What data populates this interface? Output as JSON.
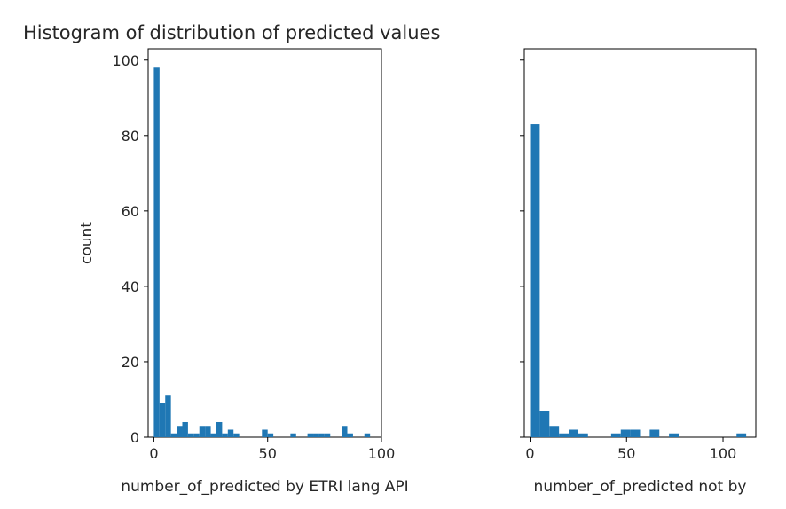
{
  "chart_data": [
    {
      "type": "bar",
      "subtype": "histogram",
      "title": "Histogram of distribution of predicted values",
      "xlabel": "number_of_predicted by ETRI lang API",
      "ylabel": "count",
      "xlim": [
        -2.5,
        100
      ],
      "ylim": [
        0,
        103
      ],
      "xticks": [
        0,
        50,
        100
      ],
      "yticks": [
        0,
        20,
        40,
        60,
        80,
        100
      ],
      "bar_color": "#1f77b4",
      "bins": [
        {
          "x0": 0,
          "x1": 2.5,
          "count": 98
        },
        {
          "x0": 2.5,
          "x1": 5,
          "count": 9
        },
        {
          "x0": 5,
          "x1": 7.5,
          "count": 11
        },
        {
          "x0": 7.5,
          "x1": 10,
          "count": 1
        },
        {
          "x0": 10,
          "x1": 12.5,
          "count": 3
        },
        {
          "x0": 12.5,
          "x1": 15,
          "count": 4
        },
        {
          "x0": 15,
          "x1": 17.5,
          "count": 1
        },
        {
          "x0": 17.5,
          "x1": 20,
          "count": 1
        },
        {
          "x0": 20,
          "x1": 22.5,
          "count": 3
        },
        {
          "x0": 22.5,
          "x1": 25,
          "count": 3
        },
        {
          "x0": 25,
          "x1": 27.5,
          "count": 1
        },
        {
          "x0": 27.5,
          "x1": 30,
          "count": 4
        },
        {
          "x0": 30,
          "x1": 32.5,
          "count": 1
        },
        {
          "x0": 32.5,
          "x1": 35,
          "count": 2
        },
        {
          "x0": 35,
          "x1": 37.5,
          "count": 1
        },
        {
          "x0": 47.5,
          "x1": 50,
          "count": 2
        },
        {
          "x0": 50,
          "x1": 52.5,
          "count": 1
        },
        {
          "x0": 60,
          "x1": 62.5,
          "count": 1
        },
        {
          "x0": 67.5,
          "x1": 70,
          "count": 1
        },
        {
          "x0": 70,
          "x1": 72.5,
          "count": 1
        },
        {
          "x0": 72.5,
          "x1": 75,
          "count": 1
        },
        {
          "x0": 75,
          "x1": 77.5,
          "count": 1
        },
        {
          "x0": 82.5,
          "x1": 85,
          "count": 3
        },
        {
          "x0": 85,
          "x1": 87.5,
          "count": 1
        },
        {
          "x0": 92.5,
          "x1": 95,
          "count": 1
        }
      ]
    },
    {
      "type": "bar",
      "subtype": "histogram",
      "title": "",
      "xlabel": "number_of_predicted not by",
      "ylabel": "",
      "xlim": [
        -3,
        117
      ],
      "ylim": [
        0,
        103
      ],
      "xticks": [
        0,
        50,
        100
      ],
      "yticks": [
        0,
        20,
        40,
        60,
        80,
        100
      ],
      "bar_color": "#1f77b4",
      "bins": [
        {
          "x0": 0,
          "x1": 5,
          "count": 83
        },
        {
          "x0": 5,
          "x1": 10,
          "count": 7
        },
        {
          "x0": 10,
          "x1": 15,
          "count": 3
        },
        {
          "x0": 15,
          "x1": 20,
          "count": 1
        },
        {
          "x0": 20,
          "x1": 25,
          "count": 2
        },
        {
          "x0": 25,
          "x1": 30,
          "count": 1
        },
        {
          "x0": 42,
          "x1": 47,
          "count": 1
        },
        {
          "x0": 47,
          "x1": 52,
          "count": 2
        },
        {
          "x0": 52,
          "x1": 57,
          "count": 2
        },
        {
          "x0": 62,
          "x1": 67,
          "count": 2
        },
        {
          "x0": 72,
          "x1": 77,
          "count": 1
        },
        {
          "x0": 107,
          "x1": 112,
          "count": 1
        }
      ]
    }
  ]
}
